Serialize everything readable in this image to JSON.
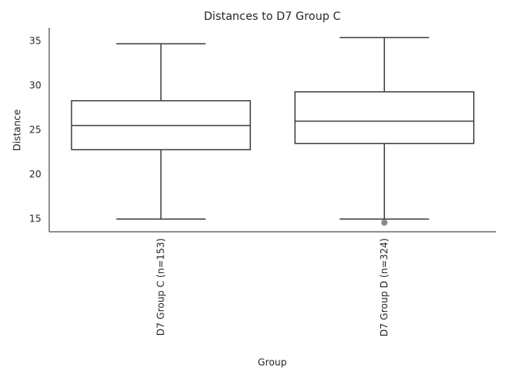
{
  "chart_data": {
    "type": "box",
    "title": "Distances to D7 Group C",
    "x_label": "Group",
    "y_label": "Distance",
    "categories": [
      "D7 Group C (n=153)",
      "D7 Group D (n=324)"
    ],
    "boxes": [
      {
        "whislo": 15.0,
        "q1": 22.8,
        "med": 25.5,
        "q3": 28.3,
        "whishi": 34.7,
        "fliers": []
      },
      {
        "whislo": 15.0,
        "q1": 23.5,
        "med": 26.0,
        "q3": 29.3,
        "whishi": 35.4,
        "fliers": [
          14.6
        ]
      }
    ],
    "color": "#3f3f3f",
    "box_fill": "#ffffff",
    "flier_color": "#8c8c8c",
    "ylim": [
      13.57,
      36.5
    ],
    "yticks": [
      15,
      20,
      25,
      30,
      35
    ],
    "grid": false
  }
}
